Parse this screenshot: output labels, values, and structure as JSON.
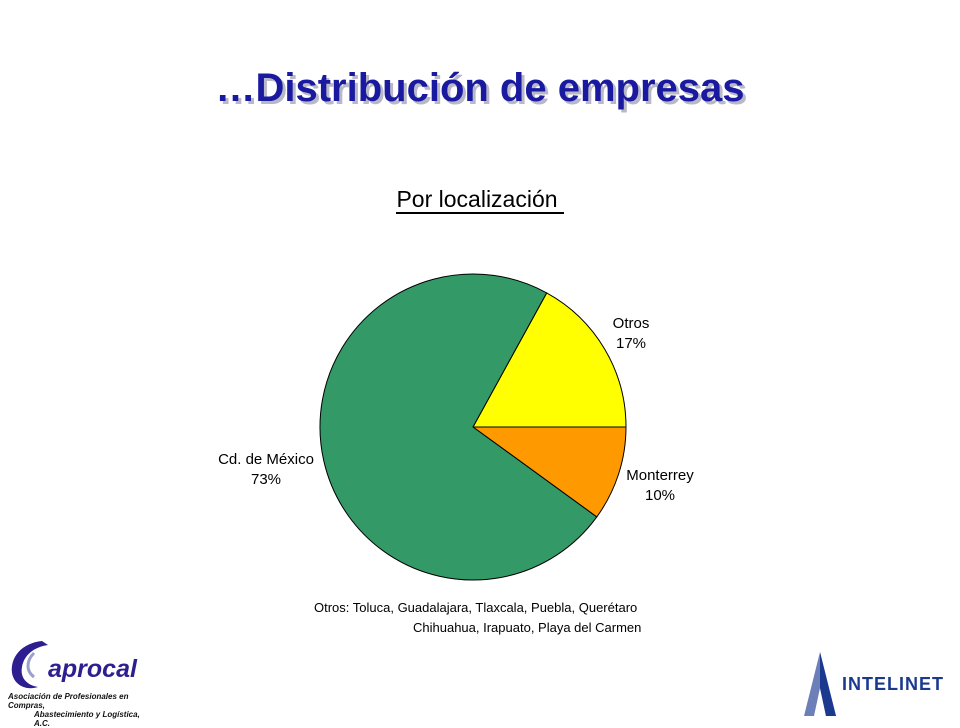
{
  "slide": {
    "title": "…Distribución de empresas",
    "footnote_line1": "Otros:  Toluca, Guadalajara, Tlaxcala, Puebla, Querétaro",
    "footnote_line2": "Chihuahua, Irapuato, Playa del Carmen"
  },
  "logos": {
    "left_name": "aprocal",
    "left_sub1": "Asociación de Profesionales en Compras,",
    "left_sub2": "Abastecimiento y Logística, A.C.",
    "right_name": "INTELINET"
  },
  "chart_data": {
    "type": "pie",
    "title": "Por localización",
    "slices": [
      {
        "label": "Otros",
        "value": 17,
        "value_label": "17%",
        "color": "#ffff00"
      },
      {
        "label": "Monterrey",
        "value": 10,
        "value_label": "10%",
        "color": "#ff9900"
      },
      {
        "label": "Cd. de México",
        "value": 73,
        "value_label": "73%",
        "color": "#339966"
      }
    ]
  }
}
